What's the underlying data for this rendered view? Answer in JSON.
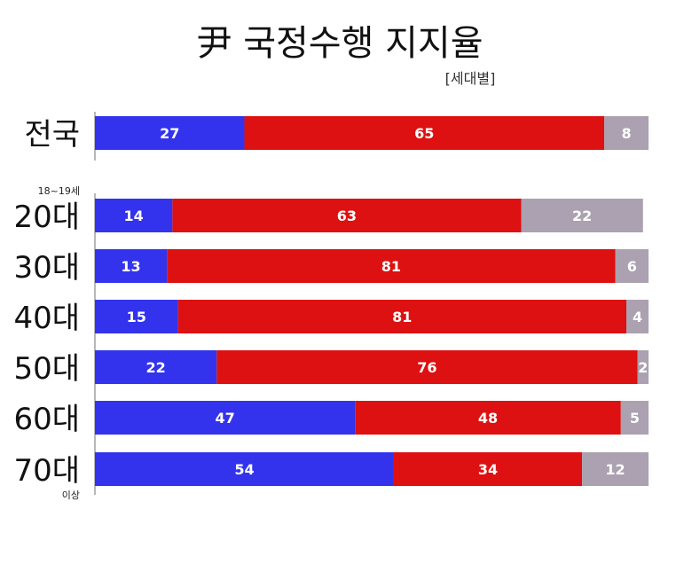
{
  "chart_data": {
    "type": "bar",
    "orientation": "horizontal",
    "stacked": true,
    "title": "尹 국정수행 지지율",
    "subtitle": "[세대별]",
    "categories": [
      "전국",
      "20대",
      "30대",
      "40대",
      "50대",
      "60대",
      "70대"
    ],
    "category_notes": {
      "20대": "18~19세",
      "70대": "이상"
    },
    "series": [
      {
        "values": [
          27,
          14,
          13,
          15,
          22,
          47,
          54
        ],
        "color": "#3333ee"
      },
      {
        "values": [
          65,
          63,
          81,
          81,
          76,
          48,
          34
        ],
        "color": "#dd1111"
      },
      {
        "values": [
          8,
          22,
          6,
          4,
          2,
          5,
          12
        ],
        "color": "#aba1b0"
      }
    ],
    "xlim": [
      0,
      100
    ],
    "grid": false,
    "legend": "none"
  }
}
